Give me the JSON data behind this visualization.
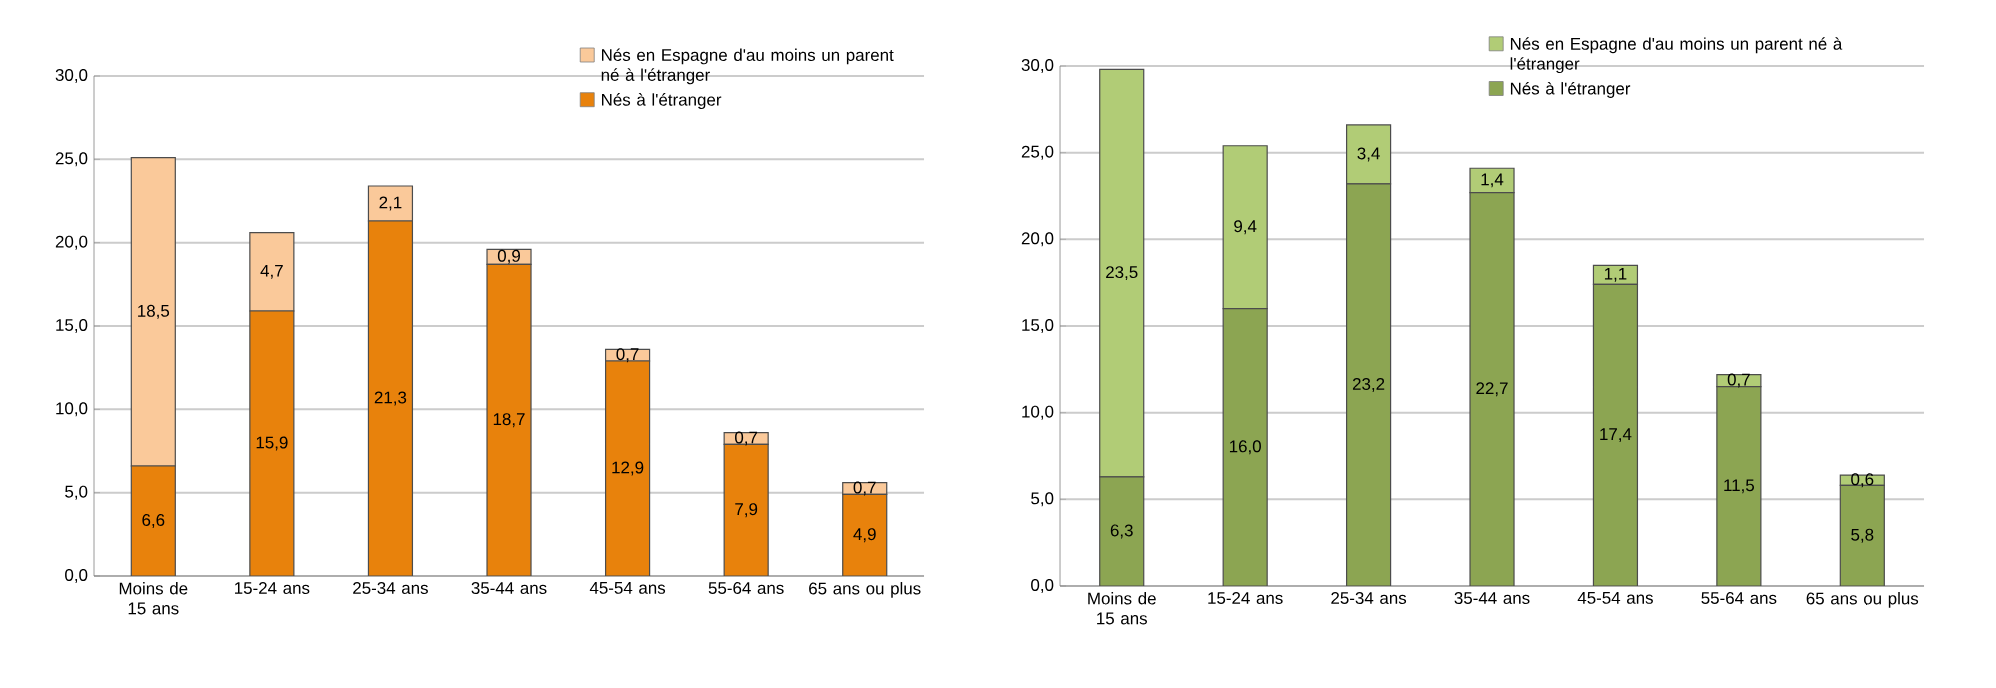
{
  "chart_data": [
    {
      "type": "bar",
      "stacked": true,
      "categories": [
        "Moins de 15 ans",
        "15-24 ans",
        "25-34 ans",
        "35-44 ans",
        "45-54 ans",
        "55-64 ans",
        "65 ans ou plus"
      ],
      "series": [
        {
          "name": "Nés à l'étranger",
          "color": "#e8820c",
          "values": [
            6.6,
            15.9,
            21.3,
            18.7,
            12.9,
            7.9,
            4.9
          ],
          "value_labels": [
            "6,6",
            "15,9",
            "21,3",
            "18,7",
            "12,9",
            "7,9",
            "4,9"
          ]
        },
        {
          "name": "Nés en Espagne d'au moins un parent né à l'étranger",
          "color": "#fac99a",
          "values": [
            18.5,
            4.7,
            2.1,
            0.9,
            0.7,
            0.7,
            0.7
          ],
          "value_labels": [
            "18,5",
            "4,7",
            "2,1",
            "0,9",
            "0,7",
            "0,7",
            "0,7"
          ]
        }
      ],
      "ylim": [
        0,
        30
      ],
      "yticks": [
        {
          "value": 0,
          "label": "0,0"
        },
        {
          "value": 5,
          "label": "5,0"
        },
        {
          "value": 10,
          "label": "10,0"
        },
        {
          "value": 15,
          "label": "15,0"
        },
        {
          "value": 20,
          "label": "20,0"
        },
        {
          "value": 25,
          "label": "25,0"
        },
        {
          "value": 30,
          "label": "30,0"
        }
      ],
      "grid": "y",
      "legend": "top right"
    },
    {
      "type": "bar",
      "stacked": true,
      "categories": [
        "Moins de 15 ans",
        "15-24 ans",
        "25-34 ans",
        "35-44 ans",
        "45-54 ans",
        "55-64 ans",
        "65 ans ou plus"
      ],
      "series": [
        {
          "name": "Nés à l'étranger",
          "color": "#8ca552",
          "values": [
            6.3,
            16.0,
            23.2,
            22.7,
            17.4,
            11.5,
            5.8
          ],
          "value_labels": [
            "6,3",
            "16,0",
            "23,2",
            "22,7",
            "17,4",
            "11,5",
            "5,8"
          ]
        },
        {
          "name": "Nés en Espagne d'au moins un parent né à l'étranger",
          "color": "#b1cc76",
          "values": [
            23.5,
            9.4,
            3.4,
            1.4,
            1.1,
            0.7,
            0.6
          ],
          "value_labels": [
            "23,5",
            "9,4",
            "3,4",
            "1,4",
            "1,1",
            "0,7",
            "0,6"
          ]
        }
      ],
      "ylim": [
        0,
        30
      ],
      "yticks": [
        {
          "value": 0,
          "label": "0,0"
        },
        {
          "value": 5,
          "label": "5,0"
        },
        {
          "value": 10,
          "label": "10,0"
        },
        {
          "value": 15,
          "label": "15,0"
        },
        {
          "value": 20,
          "label": "20,0"
        },
        {
          "value": 25,
          "label": "25,0"
        },
        {
          "value": 30,
          "label": "30,0"
        }
      ],
      "grid": "y",
      "legend": "top right"
    }
  ]
}
